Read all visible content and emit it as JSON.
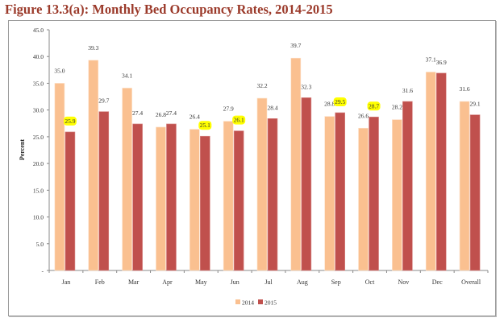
{
  "chart_data": {
    "type": "bar",
    "title": "Figure 13.3(a): Monthly Bed Occupancy Rates, 2014-2015",
    "xlabel": "",
    "ylabel": "Percent",
    "ylim": [
      0,
      45
    ],
    "yticks": [
      "-",
      "5.0",
      "10.0",
      "15.0",
      "20.0",
      "25.0",
      "30.0",
      "35.0",
      "40.0",
      "45.0"
    ],
    "grid": false,
    "legend_position": "bottom",
    "categories": [
      "Jan",
      "Feb",
      "Mar",
      "Apr",
      "May",
      "Jun",
      "Jul",
      "Aug",
      "Sep",
      "Oct",
      "Nov",
      "Dec",
      "Overall"
    ],
    "series": [
      {
        "name": "2014",
        "color": "#fac090",
        "values": [
          35.0,
          39.3,
          34.1,
          26.8,
          26.4,
          27.9,
          32.2,
          39.7,
          28.8,
          26.6,
          28.2,
          37.1,
          31.6
        ],
        "labels": [
          "35.0",
          "39.3",
          "34.1",
          "26.8",
          "26.4",
          "27.9",
          "32.2",
          "39.7",
          "28.8",
          "26.6",
          "28.2",
          "37.1",
          "31.6"
        ],
        "highlighted": []
      },
      {
        "name": "2015",
        "color": "#c0504d",
        "values": [
          25.9,
          29.7,
          27.4,
          27.4,
          25.1,
          26.1,
          28.4,
          32.3,
          29.5,
          28.7,
          31.6,
          36.9,
          29.1
        ],
        "labels": [
          "25.9",
          "29.7",
          "27.4",
          "27.4",
          "25.1",
          "26.1",
          "28.4",
          "32.3",
          "29.5",
          "28.7",
          "31.6",
          "36.9",
          "29.1"
        ],
        "highlighted": [
          "Jan",
          "May",
          "Jun",
          "Sep",
          "Oct"
        ]
      }
    ],
    "highlight_color": "#ffff00"
  }
}
